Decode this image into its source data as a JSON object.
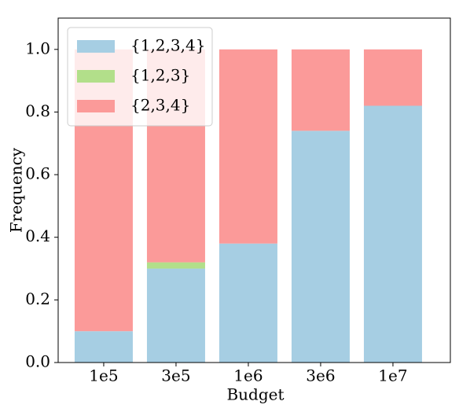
{
  "chart_data": {
    "type": "stacked_bar",
    "x_label": "Budget",
    "y_label": "Frequency",
    "categories": [
      "1e5",
      "3e5",
      "1e6",
      "3e6",
      "1e7"
    ],
    "series": [
      {
        "name": "{1,2,3,4}",
        "color": "#a6cee3",
        "values": [
          0.1,
          0.3,
          0.38,
          0.74,
          0.82
        ]
      },
      {
        "name": "{1,2,3}",
        "color": "#b2df8a",
        "values": [
          0,
          0.02,
          0,
          0,
          0
        ]
      },
      {
        "name": "{2,3,4}",
        "color": "#fb9a99",
        "values": [
          0.9,
          0.68,
          0.62,
          0.26,
          0.18
        ]
      }
    ],
    "ylim": [
      0,
      1.1
    ],
    "yticks": [
      {
        "value": 0,
        "label": "0.0"
      },
      0.2,
      0.4,
      0.6,
      0.8,
      {
        "value": 1,
        "label": "1.0"
      }
    ],
    "legend": "upper left",
    "grid": false
  }
}
